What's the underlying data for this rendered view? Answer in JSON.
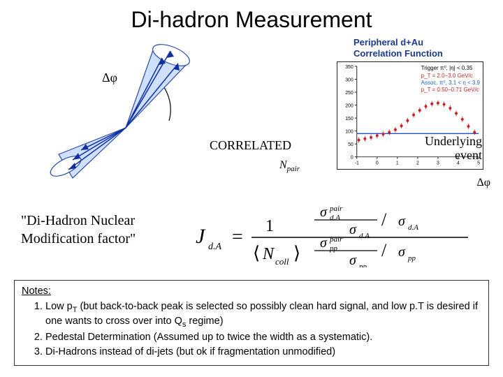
{
  "title": "Di-hadron Measurement",
  "diagram": {
    "label_deltaPhi": "Δφ",
    "label_correlated": "CORRELATED",
    "label_npair": "N",
    "label_npair_sub": "pair",
    "cone_stroke": "#2a4aa8",
    "cone_fill": "#cfe0ff",
    "arrow_color": "#1030a0",
    "arc_color": "#000000"
  },
  "chart": {
    "title_line1": "Peripheral d+Au",
    "title_line2": "Correlation Function",
    "legend": {
      "trigger": "Trigger  π⁰, |η| < 0.35",
      "pt_trigger": "p_T = 2.0−3.0 GeV/c",
      "assoc": "Assoc.   π⁰, 3.1 < η < 3.9",
      "pt_assoc": "p_T = 0.50−0.71 GeV/c"
    },
    "ylim": [
      0,
      350
    ],
    "ytick_step": 50,
    "xlim": [
      -1,
      5
    ],
    "xtick_step": 1,
    "x_values": [
      -0.9,
      -0.6,
      -0.3,
      0.0,
      0.3,
      0.6,
      0.9,
      1.2,
      1.5,
      1.8,
      2.1,
      2.4,
      2.7,
      3.0,
      3.3,
      3.6,
      3.9,
      4.2,
      4.5,
      4.8
    ],
    "y_values": [
      65,
      70,
      75,
      82,
      88,
      95,
      105,
      120,
      140,
      162,
      180,
      195,
      205,
      208,
      203,
      188,
      168,
      145,
      118,
      95
    ],
    "marker_color": "#cc2020",
    "pedestal_color": "#2050c8",
    "pedestal_y": 90,
    "background_color": "#ffffff",
    "axis_color": "#222222",
    "label_underlying1": "Underlying",
    "label_underlying2": "event",
    "axis_label": "Δφ",
    "yaxis_left_values": [
      "0",
      "50",
      "100",
      "150",
      "200",
      "250",
      "300",
      "350"
    ]
  },
  "modfactor": {
    "label1": "\"Di-Hadron Nuclear",
    "label2": "Modification factor\"",
    "colors": {
      "text": "#000000"
    }
  },
  "formula": {
    "lhs": "J",
    "lhs_sub": "d.A",
    "eq": "=",
    "num_top_left": "σ",
    "num_top_left_sup": "pair",
    "num_top_left_sub": "d.A",
    "num_top_right": "σ",
    "num_top_right_sub": "d.A",
    "denom_left": "⟨N",
    "denom_left_sub": "coll",
    "denom_left_close": "⟩",
    "num_bot_left": "σ",
    "num_bot_left_sup": "pair",
    "num_bot_left_sub": "pp",
    "num_bot_right": "σ",
    "num_bot_right_sub": "pp",
    "frac_color": "#000000"
  },
  "notes": {
    "heading": "Notes:",
    "items": [
      "Low p_T (but back-to-back peak is selected so possibly clean hard signal, and low p.T is desired if one wants to cross over into Q_s regime)",
      "Pedestal Determination (Assumed up to twice the width as a systematic).",
      "Di-Hadrons instead of di-jets (but ok if fragmentation unmodified)"
    ]
  }
}
